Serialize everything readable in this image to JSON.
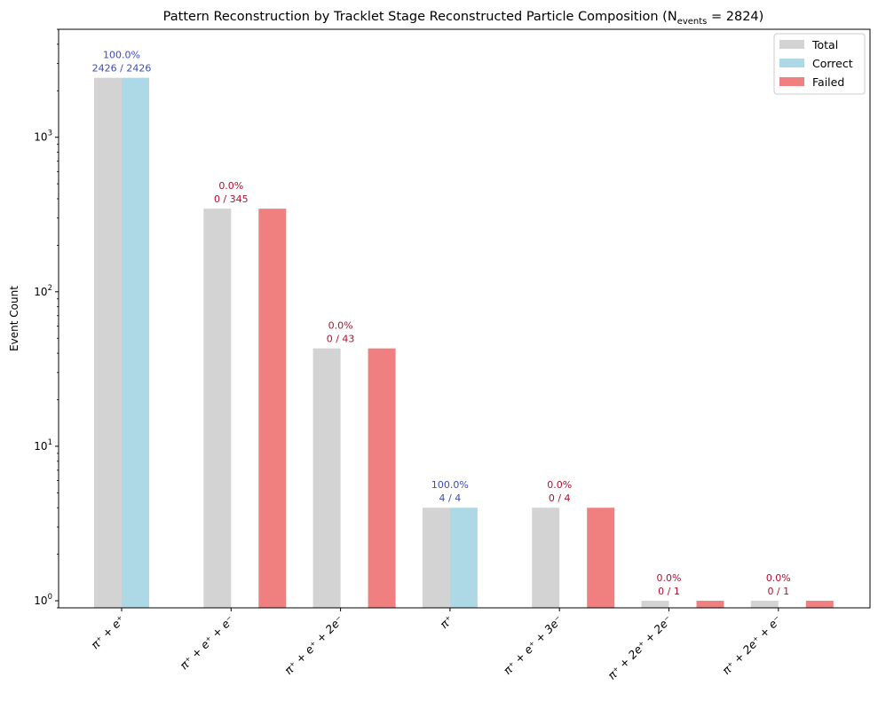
{
  "chart_data": {
    "type": "bar",
    "title": "Pattern Reconstruction by Tracklet Stage Reconstructed Particle Composition (N",
    "title_sub": "events",
    "title_tail": " = 2824)",
    "ylabel": "Event Count",
    "yscale": "log",
    "ylim": [
      0.9,
      5000
    ],
    "grid": false,
    "legend_position": "top-right",
    "categories": [
      "π⁺ + e⁺",
      "π⁺ + e⁺ + e⁻",
      "π⁺ + e⁺ + 2e⁻",
      "π⁺",
      "π⁺ + e⁺ + 3e⁻",
      "π⁺ + 2e⁺ + 2e⁻",
      "π⁺ + 2e⁺ + e⁻"
    ],
    "series": [
      {
        "name": "Total",
        "color": "#d3d3d3",
        "values": [
          2426,
          345,
          43,
          4,
          4,
          1,
          1
        ]
      },
      {
        "name": "Correct",
        "color": "#add8e6",
        "values": [
          2426,
          0,
          0,
          4,
          0,
          0,
          0
        ]
      },
      {
        "name": "Failed",
        "color": "#f08080",
        "values": [
          0,
          345,
          43,
          0,
          4,
          1,
          1
        ]
      }
    ],
    "data_labels": [
      {
        "pct": "100.0%",
        "frac": "2426 / 2426",
        "color": "#3a4db2"
      },
      {
        "pct": "0.0%",
        "frac": "0 / 345",
        "color": "#b0102a"
      },
      {
        "pct": "0.0%",
        "frac": "0 / 43",
        "color": "#b0102a"
      },
      {
        "pct": "100.0%",
        "frac": "4 / 4",
        "color": "#3a4db2"
      },
      {
        "pct": "0.0%",
        "frac": "0 / 4",
        "color": "#b0102a"
      },
      {
        "pct": "0.0%",
        "frac": "0 / 1",
        "color": "#b0102a"
      },
      {
        "pct": "0.0%",
        "frac": "0 / 1",
        "color": "#b0102a"
      }
    ],
    "y_ticks": [
      {
        "value": 1,
        "base": "10",
        "exp": "0"
      },
      {
        "value": 10,
        "base": "10",
        "exp": "1"
      },
      {
        "value": 100,
        "base": "10",
        "exp": "2"
      },
      {
        "value": 1000,
        "base": "10",
        "exp": "3"
      }
    ]
  }
}
